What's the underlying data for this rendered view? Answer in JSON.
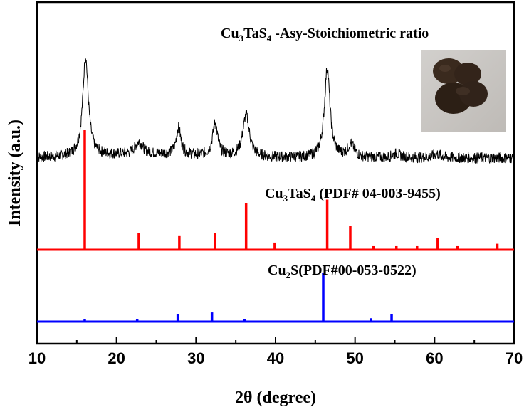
{
  "chart_data": {
    "type": "line",
    "xlabel": "2θ (degree)",
    "ylabel": "Intensity (a.u.)",
    "xlim": [
      10,
      70
    ],
    "xticks": [
      "10",
      "20",
      "30",
      "40",
      "50",
      "60",
      "70"
    ],
    "yticks": "none",
    "grid": false,
    "legend": "none",
    "series": [
      {
        "name_sub": [
          "Cu",
          "3",
          "TaS",
          "4",
          " -Asy-Stoichiometric ratio"
        ],
        "style": "noisy-line",
        "color": "#000000",
        "baseline": 0.0,
        "peaks": [
          {
            "x": 16.1,
            "height": 1.0,
            "width": 0.42
          },
          {
            "x": 22.8,
            "height": 0.12,
            "width": 0.6
          },
          {
            "x": 27.8,
            "height": 0.27,
            "width": 0.35
          },
          {
            "x": 32.4,
            "height": 0.33,
            "width": 0.38
          },
          {
            "x": 36.3,
            "height": 0.42,
            "width": 0.5
          },
          {
            "x": 46.5,
            "height": 0.9,
            "width": 0.42
          },
          {
            "x": 49.5,
            "height": 0.13,
            "width": 0.5
          },
          {
            "x": 55.2,
            "height": 0.04,
            "width": 0.6
          },
          {
            "x": 60.3,
            "height": 0.04,
            "width": 0.6
          }
        ]
      },
      {
        "name_sub": [
          "Cu",
          "3",
          "TaS",
          "4",
          " (PDF# 04-003-9455)"
        ],
        "style": "sticks",
        "color": "#ff0000",
        "x": [
          16.0,
          22.8,
          27.9,
          32.4,
          36.3,
          39.9,
          46.5,
          49.4,
          52.3,
          55.2,
          57.8,
          60.4,
          62.9,
          67.9
        ],
        "y": [
          100,
          14,
          12,
          14,
          39,
          6,
          42,
          20,
          3,
          3,
          3,
          10,
          3,
          5
        ]
      },
      {
        "name_sub": [
          "Cu",
          "2",
          "S(PDF#00-053-0522)",
          "",
          ""
        ],
        "style": "sticks",
        "color": "#0000ff",
        "x": [
          16.0,
          22.6,
          27.7,
          32.0,
          36.1,
          39.5,
          46.0,
          52.0,
          54.6
        ],
        "y": [
          5,
          5,
          16,
          19,
          5,
          2,
          100,
          7,
          16
        ]
      }
    ],
    "inset": "photo-of-dark-powder-sample"
  }
}
